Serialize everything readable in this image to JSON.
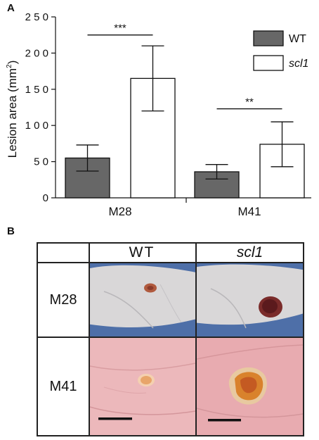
{
  "panel_a_letter": "A",
  "panel_b_letter": "B",
  "chart_data": {
    "type": "bar",
    "title": "",
    "xlabel": "",
    "ylabel": "Lesion area (mm²)",
    "ylabel_main": "Lesion area (mm",
    "ylabel_sup": "2",
    "ylabel_close": ")",
    "ylim": [
      0,
      250
    ],
    "yticks": [
      0,
      50,
      100,
      150,
      200,
      250
    ],
    "ytick_labels": [
      "0",
      "5 0",
      "1 0 0",
      "1 5 0",
      "2 0 0",
      "2 5 0"
    ],
    "categories": [
      "M28",
      "M41"
    ],
    "series": [
      {
        "name": "WT",
        "values": [
          55,
          36
        ],
        "errors": [
          18,
          10
        ],
        "color": "#676767",
        "italic": false
      },
      {
        "name": "scl1",
        "values": [
          165,
          74
        ],
        "errors": [
          45,
          31
        ],
        "color": "#ffffff",
        "italic": true
      }
    ],
    "annotations": [
      {
        "category": "M28",
        "text": "***",
        "at_value": 225
      },
      {
        "category": "M41",
        "text": "**",
        "at_value": 123
      }
    ],
    "legend": "top-right",
    "grid": false
  },
  "panel_b": {
    "columns": [
      "WT",
      "scl1"
    ],
    "rows": [
      "M28",
      "M41"
    ],
    "colors": {
      "background_blue": "#4e6fa8",
      "skin_white": "#d9d7d8",
      "skin_pink": "#e9aeb2",
      "lesion_dark": "#6b2224",
      "lesion_orange": "#d9822c",
      "scale_bar": "#111111"
    }
  }
}
